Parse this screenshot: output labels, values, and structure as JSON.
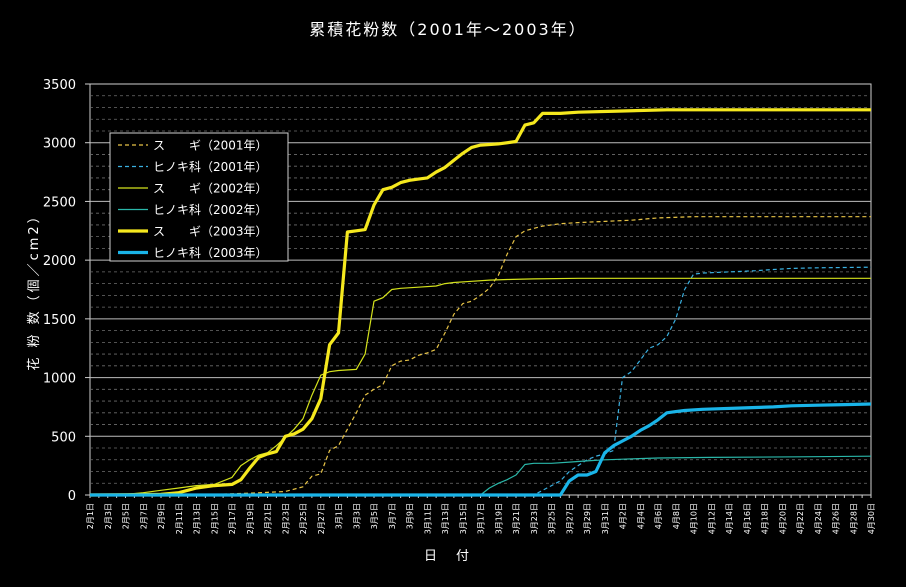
{
  "chart_data": {
    "type": "line",
    "title": "累積花粉数（2001年～2003年）",
    "xlabel": "日　付",
    "ylabel": "花 粉 数（個／cm2）",
    "ylim": [
      0,
      3500
    ],
    "yticks": [
      0,
      500,
      1000,
      1500,
      2000,
      2500,
      3000,
      3500
    ],
    "grid": true,
    "legend_position": "top-left",
    "x_tick_labels": [
      "2月1日",
      "2月3日",
      "2月5日",
      "2月7日",
      "2月9日",
      "2月11日",
      "2月13日",
      "2月15日",
      "2月17日",
      "2月19日",
      "2月21日",
      "2月23日",
      "2月25日",
      "2月27日",
      "3月1日",
      "3月3日",
      "3月5日",
      "3月7日",
      "3月9日",
      "3月11日",
      "3月13日",
      "3月15日",
      "3月17日",
      "3月19日",
      "3月21日",
      "3月23日",
      "3月25日",
      "3月27日",
      "3月29日",
      "3月31日",
      "4月2日",
      "4月4日",
      "4月6日",
      "4月8日",
      "4月10日",
      "4月12日",
      "4月14日",
      "4月16日",
      "4月18日",
      "4月20日",
      "4月22日",
      "4月24日",
      "4月26日",
      "4月28日",
      "4月30日"
    ],
    "series": [
      {
        "name": "ス　　ギ（2001年）",
        "color": "#e8c447",
        "width": 1.2,
        "dash": "4,3",
        "points": [
          [
            0,
            0
          ],
          [
            14,
            5
          ],
          [
            18,
            15
          ],
          [
            22,
            30
          ],
          [
            24,
            70
          ],
          [
            25,
            160
          ],
          [
            26,
            180
          ],
          [
            27,
            380
          ],
          [
            28,
            420
          ],
          [
            29,
            560
          ],
          [
            30,
            700
          ],
          [
            31,
            850
          ],
          [
            32,
            900
          ],
          [
            33,
            940
          ],
          [
            34,
            1100
          ],
          [
            35,
            1140
          ],
          [
            36,
            1150
          ],
          [
            37,
            1190
          ],
          [
            38,
            1210
          ],
          [
            39,
            1240
          ],
          [
            40,
            1380
          ],
          [
            41,
            1540
          ],
          [
            42,
            1630
          ],
          [
            43,
            1650
          ],
          [
            44,
            1700
          ],
          [
            45,
            1760
          ],
          [
            46,
            1870
          ],
          [
            47,
            2050
          ],
          [
            48,
            2200
          ],
          [
            49,
            2250
          ],
          [
            50,
            2270
          ],
          [
            51,
            2290
          ],
          [
            52,
            2300
          ],
          [
            53,
            2310
          ],
          [
            55,
            2320
          ],
          [
            58,
            2330
          ],
          [
            61,
            2340
          ],
          [
            64,
            2360
          ],
          [
            68,
            2370
          ],
          [
            88,
            2370
          ]
        ]
      },
      {
        "name": "ヒノキ科（2001年）",
        "color": "#3ab0e0",
        "width": 1.2,
        "dash": "4,3",
        "points": [
          [
            0,
            0
          ],
          [
            50,
            0
          ],
          [
            53,
            120
          ],
          [
            54,
            200
          ],
          [
            55,
            250
          ],
          [
            56,
            300
          ],
          [
            57,
            330
          ],
          [
            58,
            350
          ],
          [
            59,
            380
          ],
          [
            60,
            1000
          ],
          [
            61,
            1050
          ],
          [
            62,
            1150
          ],
          [
            63,
            1250
          ],
          [
            64,
            1280
          ],
          [
            65,
            1350
          ],
          [
            66,
            1500
          ],
          [
            67,
            1750
          ],
          [
            68,
            1880
          ],
          [
            69,
            1890
          ],
          [
            72,
            1900
          ],
          [
            75,
            1910
          ],
          [
            77,
            1920
          ],
          [
            79,
            1930
          ],
          [
            82,
            1935
          ],
          [
            88,
            1940
          ]
        ]
      },
      {
        "name": "ス　　ギ（2002年）",
        "color": "#d4e21c",
        "width": 1.2,
        "dash": "",
        "points": [
          [
            0,
            0
          ],
          [
            2,
            0
          ],
          [
            4,
            5
          ],
          [
            6,
            20
          ],
          [
            8,
            40
          ],
          [
            10,
            60
          ],
          [
            12,
            80
          ],
          [
            14,
            90
          ],
          [
            16,
            150
          ],
          [
            17,
            250
          ],
          [
            18,
            300
          ],
          [
            19,
            340
          ],
          [
            20,
            360
          ],
          [
            21,
            420
          ],
          [
            22,
            490
          ],
          [
            23,
            560
          ],
          [
            24,
            650
          ],
          [
            25,
            850
          ],
          [
            26,
            1020
          ],
          [
            27,
            1050
          ],
          [
            28,
            1060
          ],
          [
            30,
            1070
          ],
          [
            31,
            1200
          ],
          [
            32,
            1650
          ],
          [
            33,
            1680
          ],
          [
            34,
            1750
          ],
          [
            35,
            1760
          ],
          [
            37,
            1770
          ],
          [
            39,
            1780
          ],
          [
            40,
            1800
          ],
          [
            41,
            1810
          ],
          [
            43,
            1820
          ],
          [
            45,
            1830
          ],
          [
            47,
            1835
          ],
          [
            50,
            1840
          ],
          [
            55,
            1845
          ],
          [
            88,
            1845
          ]
        ]
      },
      {
        "name": "ヒノキ科（2002年）",
        "color": "#2ab7a9",
        "width": 1.2,
        "dash": "",
        "points": [
          [
            0,
            0
          ],
          [
            44,
            0
          ],
          [
            45,
            60
          ],
          [
            46,
            100
          ],
          [
            47,
            130
          ],
          [
            48,
            170
          ],
          [
            49,
            260
          ],
          [
            50,
            270
          ],
          [
            52,
            270
          ],
          [
            54,
            280
          ],
          [
            56,
            290
          ],
          [
            58,
            300
          ],
          [
            60,
            305
          ],
          [
            64,
            315
          ],
          [
            70,
            320
          ],
          [
            80,
            325
          ],
          [
            88,
            330
          ]
        ]
      },
      {
        "name": "ス　　ギ（2003年）",
        "color": "#f5e81e",
        "width": 3.2,
        "dash": "",
        "points": [
          [
            0,
            0
          ],
          [
            8,
            5
          ],
          [
            10,
            20
          ],
          [
            12,
            60
          ],
          [
            14,
            80
          ],
          [
            16,
            90
          ],
          [
            17,
            130
          ],
          [
            18,
            230
          ],
          [
            19,
            320
          ],
          [
            20,
            350
          ],
          [
            21,
            370
          ],
          [
            22,
            500
          ],
          [
            23,
            520
          ],
          [
            24,
            560
          ],
          [
            25,
            650
          ],
          [
            26,
            820
          ],
          [
            27,
            1280
          ],
          [
            28,
            1380
          ],
          [
            29,
            2240
          ],
          [
            30,
            2250
          ],
          [
            31,
            2260
          ],
          [
            32,
            2470
          ],
          [
            33,
            2600
          ],
          [
            34,
            2620
          ],
          [
            35,
            2660
          ],
          [
            36,
            2680
          ],
          [
            37,
            2690
          ],
          [
            38,
            2700
          ],
          [
            39,
            2750
          ],
          [
            40,
            2790
          ],
          [
            41,
            2850
          ],
          [
            42,
            2910
          ],
          [
            43,
            2960
          ],
          [
            44,
            2980
          ],
          [
            46,
            2990
          ],
          [
            48,
            3010
          ],
          [
            49,
            3150
          ],
          [
            50,
            3170
          ],
          [
            51,
            3250
          ],
          [
            53,
            3250
          ],
          [
            55,
            3260
          ],
          [
            60,
            3270
          ],
          [
            65,
            3280
          ],
          [
            88,
            3280
          ]
        ]
      },
      {
        "name": "ヒノキ科（2003年）",
        "color": "#1ab4e8",
        "width": 3.2,
        "dash": "",
        "points": [
          [
            0,
            0
          ],
          [
            52,
            0
          ],
          [
            53,
            0
          ],
          [
            54,
            120
          ],
          [
            55,
            170
          ],
          [
            56,
            170
          ],
          [
            57,
            200
          ],
          [
            58,
            360
          ],
          [
            59,
            420
          ],
          [
            60,
            460
          ],
          [
            61,
            500
          ],
          [
            62,
            550
          ],
          [
            63,
            590
          ],
          [
            64,
            640
          ],
          [
            65,
            700
          ],
          [
            66,
            710
          ],
          [
            67,
            720
          ],
          [
            69,
            730
          ],
          [
            71,
            735
          ],
          [
            73,
            740
          ],
          [
            75,
            745
          ],
          [
            77,
            750
          ],
          [
            79,
            760
          ],
          [
            82,
            765
          ],
          [
            85,
            770
          ],
          [
            88,
            775
          ]
        ]
      }
    ]
  }
}
